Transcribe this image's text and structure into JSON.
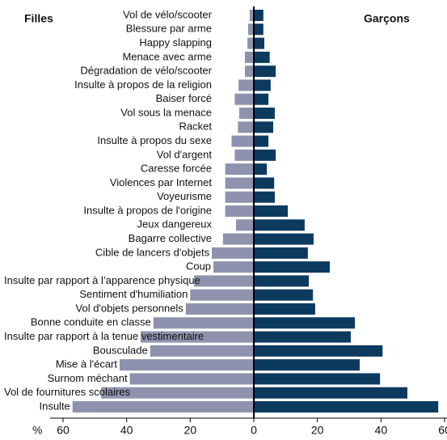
{
  "chart_data": {
    "type": "butterfly",
    "xlabel": "%",
    "categories": [
      "Vol de vélo/scooter",
      "Blessure par arme",
      "Happy slapping",
      "Menace avec arme",
      "Dégradation de vélo/scooter",
      "Insulte à propos de la religion",
      "Baiser forcé",
      "Vol sous la menace",
      "Racket",
      "Insulte à propos du sexe",
      "Vol d'argent",
      "Caresse forcée",
      "Violences par Internet",
      "Voyeurisme",
      "Insulte à propos de l'origine",
      "Jeux dangereux",
      "Bagarre collective",
      "Cible de lancers d'objets",
      "Coup",
      "Insulte par rapport à l’apparence physique",
      "Sentiment d'humiliation",
      "Vol d'objets personnels",
      "Bonne conduite en classe",
      "Insulte par rapport à la tenue vestimentaire",
      "Bousculade",
      "Mise à l'écart",
      "Surnom méchant",
      "Vol de fournitures scolaires",
      "Insulte"
    ],
    "series": [
      {
        "name": "Filles",
        "color": "#8f92ae",
        "values": [
          1.3,
          1.8,
          2,
          2.8,
          2.8,
          4.8,
          6,
          4.6,
          5,
          7,
          6,
          9,
          9,
          9,
          9,
          5.6,
          9.7,
          13.2,
          12.7,
          18.8,
          20,
          21.4,
          31.6,
          35.6,
          32.6,
          42.2,
          39,
          48,
          57
        ]
      },
      {
        "name": "Garçons",
        "color": "#0c3a5f",
        "values": [
          3,
          3,
          3.3,
          5,
          6.9,
          5.3,
          4.6,
          6.6,
          6.1,
          4.6,
          6.9,
          4.1,
          6.4,
          6.6,
          10.7,
          16,
          18.8,
          17,
          23.9,
          17.3,
          18.6,
          19.3,
          31.8,
          30.5,
          40.5,
          33.3,
          39.7,
          48.3,
          58
        ]
      }
    ],
    "xlim": [
      -60,
      60
    ],
    "xticks": [
      {
        "value": -60,
        "label": "60"
      },
      {
        "value": -40,
        "label": "40"
      },
      {
        "value": -20,
        "label": "20"
      },
      0,
      20,
      40,
      60
    ]
  }
}
